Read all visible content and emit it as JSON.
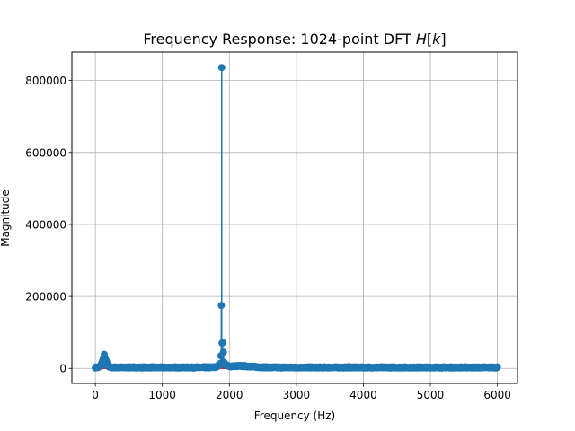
{
  "chart_data": {
    "type": "stem",
    "title": {
      "prefix": "Frequency Response: 1024-point DFT ",
      "symbol": "H",
      "open": "[",
      "index": "k",
      "close": "]"
    },
    "xlabel": "Frequency (Hz)",
    "ylabel": "Magnitude",
    "xlim": [
      -350,
      6300
    ],
    "ylim": [
      -41800,
      879000
    ],
    "xticks": [
      0,
      1000,
      2000,
      3000,
      4000,
      5000,
      6000
    ],
    "xtick_labels": [
      "0",
      "1000",
      "2000",
      "3000",
      "4000",
      "5000",
      "6000"
    ],
    "yticks": [
      0,
      200000,
      400000,
      600000,
      800000
    ],
    "ytick_labels": [
      "0",
      "200000",
      "400000",
      "600000",
      "800000"
    ],
    "grid": true,
    "colors": {
      "stem": "#1f77b4",
      "baseline": "#d62728",
      "grid": "#b0b0b0"
    },
    "baseline": 0,
    "x_range": [
      0,
      6000
    ],
    "points": 1024,
    "notable_points": [
      {
        "x": 133,
        "y": 39000
      },
      {
        "x": 148,
        "y": 25000
      },
      {
        "x": 1886,
        "y": 836000
      },
      {
        "x": 1880,
        "y": 175000
      },
      {
        "x": 1892,
        "y": 70000
      },
      {
        "x": 1874,
        "y": 35000
      },
      {
        "x": 1898,
        "y": 72000
      },
      {
        "x": 1910,
        "y": 45000
      },
      {
        "x": 3790,
        "y": 5000
      }
    ]
  }
}
